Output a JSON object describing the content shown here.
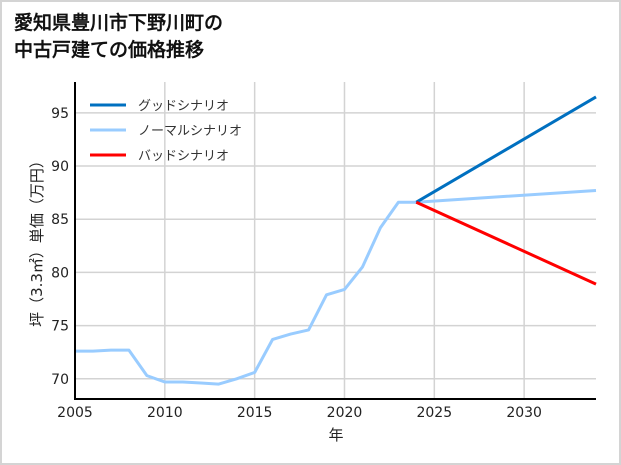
{
  "title_line1": "愛知県豊川市下野川町の",
  "title_line2": "中古戸建ての価格推移",
  "chart_data": {
    "type": "line",
    "title": "愛知県豊川市下野川町の中古戸建ての価格推移",
    "xlabel": "年",
    "ylabel": "坪（3.3㎡）単価（万円）",
    "xlim": [
      2005,
      2034
    ],
    "ylim": [
      68.1,
      97.9
    ],
    "xticks": [
      2005,
      2010,
      2015,
      2020,
      2025,
      2030
    ],
    "yticks": [
      70,
      75,
      80,
      85,
      90,
      95
    ],
    "grid": true,
    "legend_position": "upper left",
    "series": [
      {
        "name": "グッドシナリオ",
        "color": "#0070c0",
        "x": [
          2024,
          2034
        ],
        "values": [
          86.6,
          96.5
        ]
      },
      {
        "name": "ノーマルシナリオ",
        "color": "#99ccff",
        "x": [
          2005,
          2006,
          2007,
          2008,
          2009,
          2010,
          2011,
          2012,
          2013,
          2014,
          2015,
          2016,
          2017,
          2018,
          2019,
          2020,
          2021,
          2022,
          2023,
          2024,
          2034
        ],
        "values": [
          72.6,
          72.6,
          72.7,
          72.7,
          70.3,
          69.7,
          69.7,
          69.6,
          69.5,
          70.0,
          70.6,
          73.7,
          74.2,
          74.6,
          77.9,
          78.4,
          80.5,
          84.2,
          86.6,
          86.6,
          87.7
        ]
      },
      {
        "name": "バッドシナリオ",
        "color": "#ff0000",
        "x": [
          2024,
          2034
        ],
        "values": [
          86.6,
          78.9
        ]
      }
    ]
  },
  "legend": [
    {
      "label": "グッドシナリオ",
      "color": "#0070c0"
    },
    {
      "label": "ノーマルシナリオ",
      "color": "#99ccff"
    },
    {
      "label": "バッドシナリオ",
      "color": "#ff0000"
    }
  ]
}
